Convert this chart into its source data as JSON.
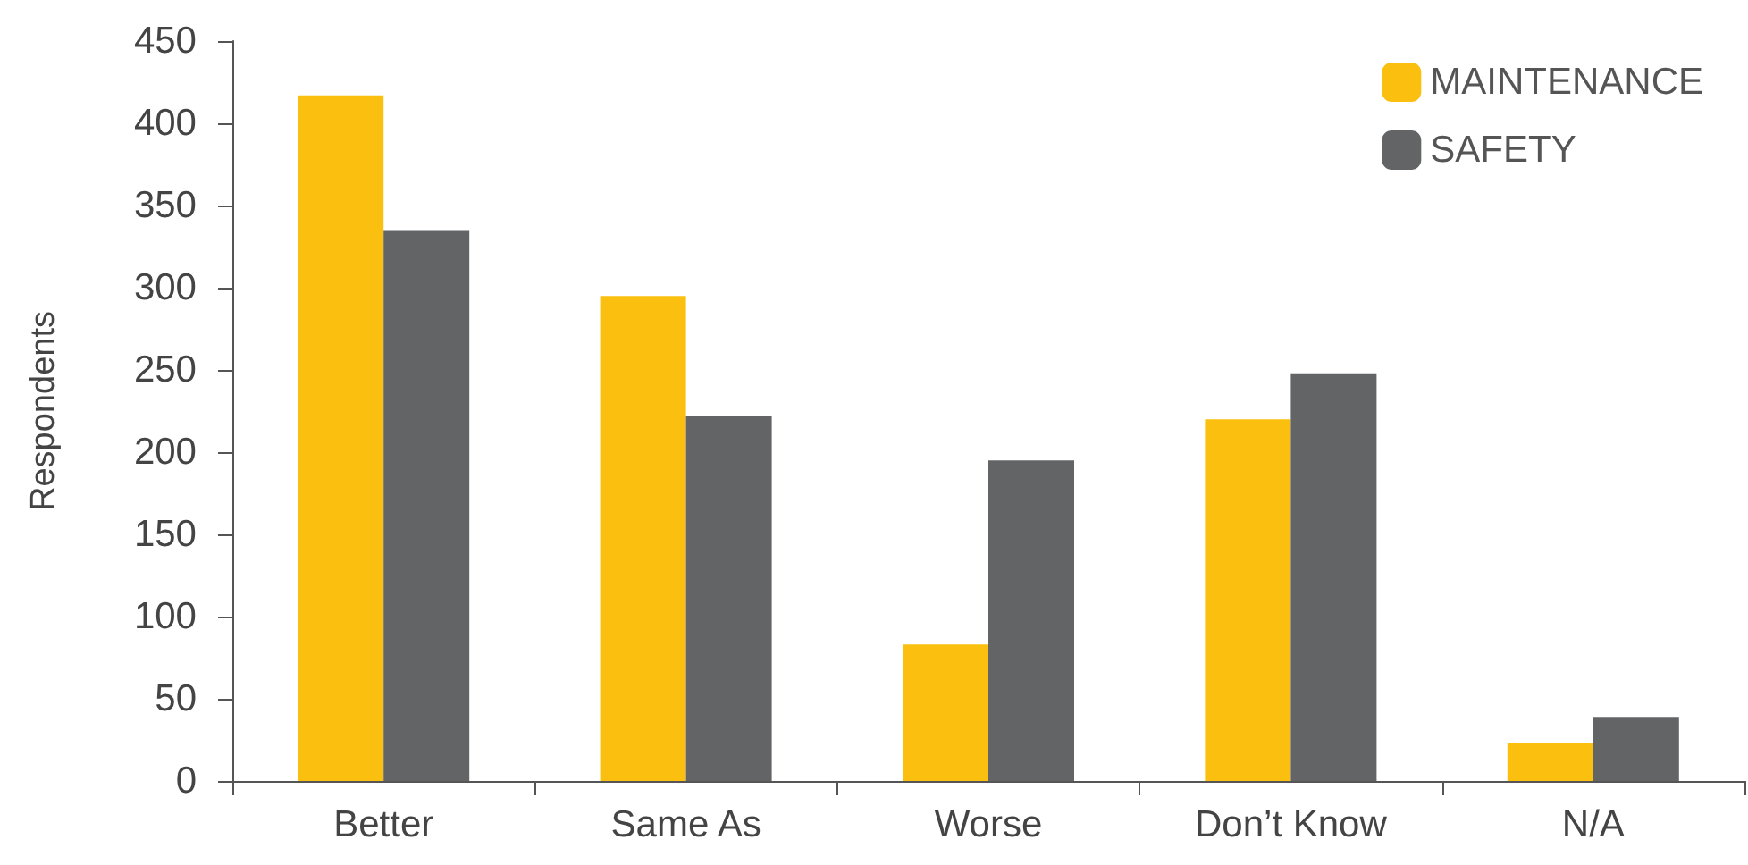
{
  "chart_data": {
    "type": "bar",
    "ylabel": "Respondents",
    "categories": [
      "Better",
      "Same As",
      "Worse",
      "Don’t Know",
      "N/A"
    ],
    "series": [
      {
        "name": "MAINTENANCE",
        "color": "#fbbf0f",
        "values": [
          417,
          295,
          83,
          220,
          23
        ]
      },
      {
        "name": "SAFETY",
        "color": "#636466",
        "values": [
          335,
          222,
          195,
          248,
          39
        ]
      }
    ],
    "ylim": [
      0,
      450
    ],
    "yticks": [
      0,
      50,
      100,
      150,
      200,
      250,
      300,
      350,
      400,
      450
    ],
    "grid": false,
    "legend": "top right"
  }
}
